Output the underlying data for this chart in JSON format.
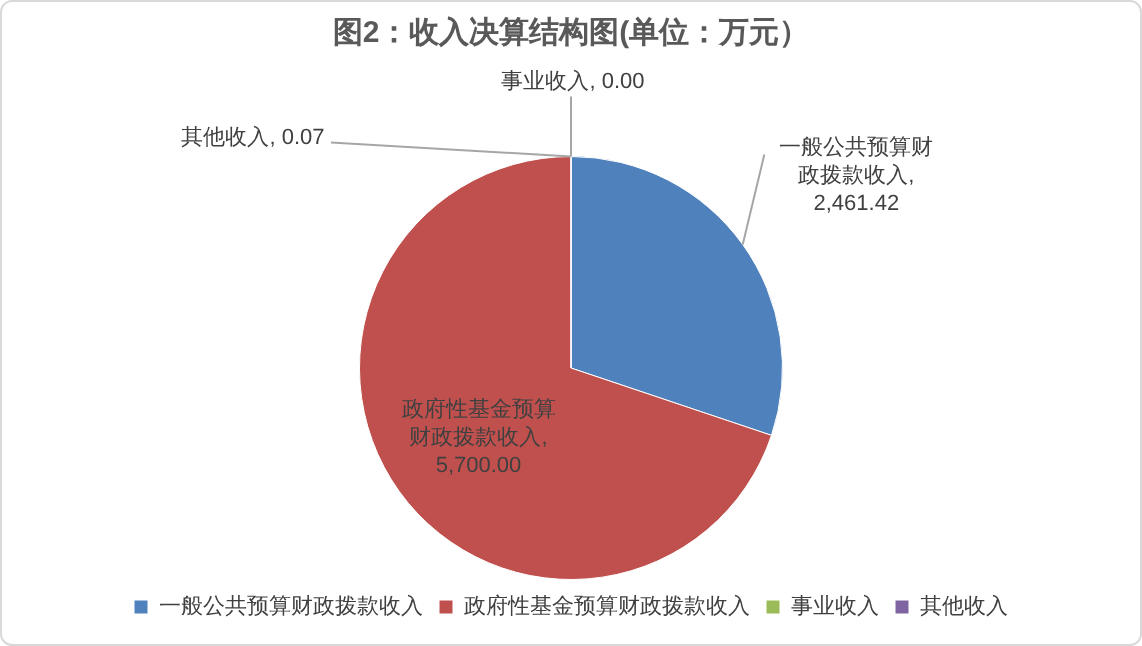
{
  "chart_data": {
    "type": "pie",
    "title": "图2：收入决算结构图(单位：万元）",
    "categories": [
      "一般公共预算财政拨款收入",
      "政府性基金预算财政拨款收入",
      "事业收入",
      "其他收入"
    ],
    "values": [
      2461.42,
      5700.0,
      0.0,
      0.07
    ],
    "colors": [
      "#4f81bd",
      "#c0504d",
      "#9bbb59",
      "#8064a2"
    ],
    "value_labels": [
      ", 2,461.42",
      ", 5,700.00",
      ", 0.00",
      ", 0.07"
    ],
    "legend": "bottom"
  }
}
